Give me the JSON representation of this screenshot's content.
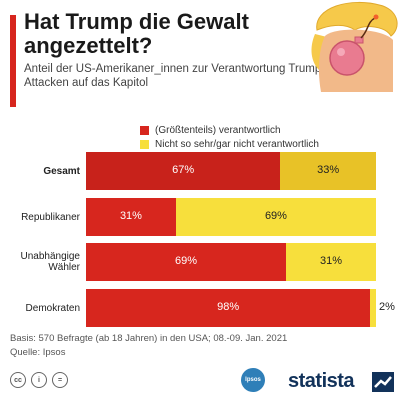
{
  "title": "Hat Trump die Gewalt angezettelt?",
  "subtitle": "Anteil der US-Amerikaner_innen zur Verantwortung Trumps für die Attacken auf das Kapitol",
  "legend": [
    {
      "label": "(Größtenteils) verantwortlich",
      "color": "#d7261e"
    },
    {
      "label": "Nicht so sehr/gar nicht verantwortlich",
      "color": "#f7df3c"
    }
  ],
  "chart_data": {
    "type": "bar",
    "orientation": "horizontal",
    "stacked": true,
    "categories": [
      "Gesamt",
      "Republikaner",
      "Unabhängige Wähler",
      "Demokraten"
    ],
    "series": [
      {
        "name": "(Größtenteils) verantwortlich",
        "values": [
          67,
          31,
          69,
          98
        ]
      },
      {
        "name": "Nicht so sehr/gar nicht verantwortlich",
        "values": [
          33,
          69,
          31,
          2
        ]
      }
    ],
    "value_labels": [
      [
        "67%",
        "31%",
        "69%",
        "98%"
      ],
      [
        "33%",
        "69%",
        "31%",
        "2%"
      ]
    ],
    "highlight_category": "Gesamt",
    "highlight_colors": [
      "#c8221b",
      "#e8c227"
    ],
    "unit": "%",
    "xlim": [
      0,
      100
    ]
  },
  "footer": {
    "basis": "Basis: 570 Befragte (ab 18 Jahren) in den USA; 08.-09. Jan. 2021",
    "source": "Quelle: Ipsos"
  },
  "branding": {
    "ipsos": "Ipsos",
    "statista": "statista"
  },
  "cc_icons": [
    "cc",
    "i",
    "="
  ]
}
